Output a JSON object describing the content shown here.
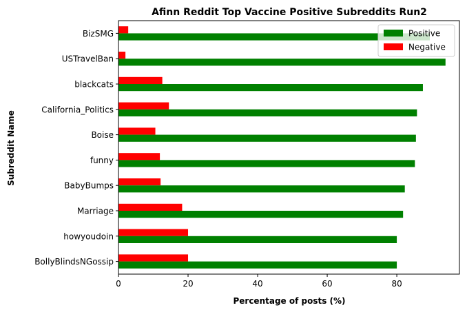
{
  "chart_data": {
    "type": "bar",
    "orientation": "horizontal",
    "title": "Afinn Reddit Top Vaccine Positive Subreddits Run2",
    "xlabel": "Percentage of posts (%)",
    "ylabel": "Subreddit Name",
    "xlim": [
      0,
      98
    ],
    "xticks": [
      0,
      20,
      40,
      60,
      80
    ],
    "categories": [
      "BizSMG",
      "USTravelBan",
      "blackcats",
      "California_Politics",
      "Boise",
      "funny",
      "BabyBumps",
      "Marriage",
      "howyoudoin",
      "BollyBlindsNGossip"
    ],
    "series": [
      {
        "name": "Positive",
        "color": "#008000",
        "values": [
          89.5,
          94.0,
          87.5,
          85.8,
          85.5,
          85.2,
          82.3,
          81.8,
          80.0,
          80.0
        ]
      },
      {
        "name": "Negative",
        "color": "#ff0000",
        "values": [
          2.8,
          2.0,
          12.6,
          14.5,
          10.6,
          11.9,
          12.1,
          18.3,
          20.0,
          20.0
        ]
      }
    ],
    "grid": false,
    "legend": "top-right"
  }
}
